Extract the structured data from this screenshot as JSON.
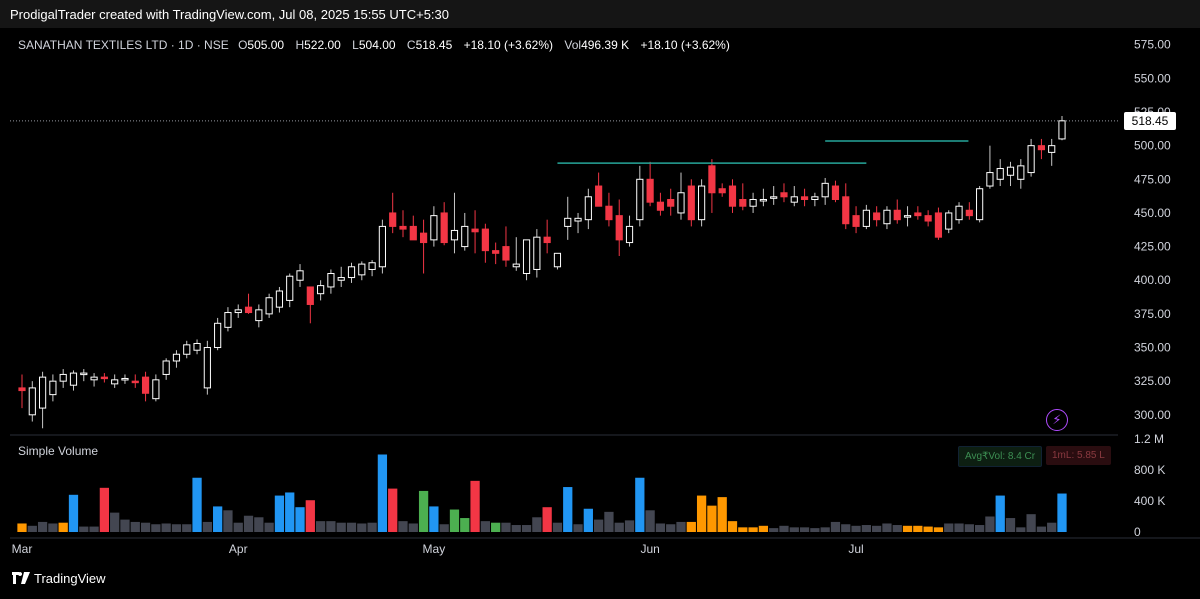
{
  "header": {
    "attribution": "ProdigalTrader created with TradingView.com, Jul 08, 2025 15:55 UTC+5:30"
  },
  "legend": {
    "symbol": "SANATHAN TEXTILES LTD · 1D · NSE",
    "open_label": "O",
    "open": "505.00",
    "high_label": "H",
    "high": "522.00",
    "low_label": "L",
    "low": "504.00",
    "close_label": "C",
    "close": "518.45",
    "change": "+18.10 (+3.62%)",
    "vol_label": "Vol",
    "vol": "496.39 K",
    "vol_change": "+18.10 (+3.62%)"
  },
  "volume_pane": {
    "title": "Simple Volume",
    "avg_vol": "Avg₹Vol: 8.4 Cr",
    "one_m": "1mL: 5.85 L"
  },
  "last_price_tag": "518.45",
  "footer": {
    "brand": "TradingView"
  },
  "colors": {
    "up": "#ffffff",
    "down": "#f23645",
    "green_vol": "#4caf50",
    "blue_vol": "#2196f3",
    "red_vol": "#f23645",
    "gray_vol": "#434651",
    "orange_vol": "#ff9800",
    "line": "#26a69a"
  },
  "chart_data": {
    "type": "candlestick",
    "title": "SANATHAN TEXTILES LTD · 1D · NSE",
    "y_ticks": [
      "575.00",
      "550.00",
      "525.00",
      "500.00",
      "475.00",
      "450.00",
      "425.00",
      "400.00",
      "375.00",
      "350.00",
      "325.00",
      "300.00"
    ],
    "ylim": [
      285,
      580
    ],
    "x_ticks": [
      {
        "label": "Mar",
        "index": 0
      },
      {
        "label": "Apr",
        "index": 21
      },
      {
        "label": "May",
        "index": 40
      },
      {
        "label": "Jun",
        "index": 61
      },
      {
        "label": "Jul",
        "index": 81
      }
    ],
    "volume_ticks": [
      "1.2 M",
      "800 K",
      "400 K",
      "0"
    ],
    "volume_lim": [
      0,
      1200000
    ],
    "resistance_lines": [
      {
        "price": 487,
        "from_index": 52,
        "to_index": 82
      },
      {
        "price": 503.5,
        "from_index": 78,
        "to_index": 89
      }
    ],
    "candles": [
      {
        "o": 320,
        "h": 330,
        "l": 305,
        "c": 318,
        "v": 110000
      },
      {
        "o": 300,
        "h": 325,
        "l": 295,
        "c": 320,
        "v": 80000
      },
      {
        "o": 305,
        "h": 332,
        "l": 290,
        "c": 328,
        "v": 130000
      },
      {
        "o": 315,
        "h": 330,
        "l": 310,
        "c": 325,
        "v": 110000
      },
      {
        "o": 325,
        "h": 334,
        "l": 320,
        "c": 330,
        "v": 120000
      },
      {
        "o": 322,
        "h": 333,
        "l": 318,
        "c": 331,
        "v": 480000
      },
      {
        "o": 330,
        "h": 334,
        "l": 325,
        "c": 331,
        "v": 70000
      },
      {
        "o": 326,
        "h": 331,
        "l": 321,
        "c": 328,
        "v": 70000
      },
      {
        "o": 328,
        "h": 331,
        "l": 324,
        "c": 327,
        "v": 570000
      },
      {
        "o": 323,
        "h": 330,
        "l": 320,
        "c": 326,
        "v": 250000
      },
      {
        "o": 327,
        "h": 330,
        "l": 323,
        "c": 327,
        "v": 160000
      },
      {
        "o": 325,
        "h": 330,
        "l": 320,
        "c": 324,
        "v": 130000
      },
      {
        "o": 328,
        "h": 332,
        "l": 310,
        "c": 316,
        "v": 120000
      },
      {
        "o": 312,
        "h": 330,
        "l": 310,
        "c": 326,
        "v": 100000
      },
      {
        "o": 330,
        "h": 342,
        "l": 326,
        "c": 340,
        "v": 110000
      },
      {
        "o": 340,
        "h": 348,
        "l": 335,
        "c": 345,
        "v": 100000
      },
      {
        "o": 345,
        "h": 355,
        "l": 342,
        "c": 352,
        "v": 100000
      },
      {
        "o": 348,
        "h": 356,
        "l": 345,
        "c": 353,
        "v": 700000
      },
      {
        "o": 320,
        "h": 355,
        "l": 315,
        "c": 350,
        "v": 130000
      },
      {
        "o": 350,
        "h": 372,
        "l": 348,
        "c": 368,
        "v": 330000
      },
      {
        "o": 365,
        "h": 380,
        "l": 362,
        "c": 376,
        "v": 280000
      },
      {
        "o": 376,
        "h": 382,
        "l": 372,
        "c": 378,
        "v": 120000
      },
      {
        "o": 380,
        "h": 390,
        "l": 375,
        "c": 376,
        "v": 210000
      },
      {
        "o": 370,
        "h": 382,
        "l": 365,
        "c": 378,
        "v": 190000
      },
      {
        "o": 375,
        "h": 390,
        "l": 372,
        "c": 387,
        "v": 120000
      },
      {
        "o": 380,
        "h": 395,
        "l": 376,
        "c": 392,
        "v": 470000
      },
      {
        "o": 385,
        "h": 405,
        "l": 380,
        "c": 403,
        "v": 510000
      },
      {
        "o": 400,
        "h": 412,
        "l": 395,
        "c": 407,
        "v": 320000
      },
      {
        "o": 395,
        "h": 395,
        "l": 368,
        "c": 382,
        "v": 410000
      },
      {
        "o": 390,
        "h": 400,
        "l": 385,
        "c": 396,
        "v": 140000
      },
      {
        "o": 395,
        "h": 408,
        "l": 390,
        "c": 405,
        "v": 140000
      },
      {
        "o": 400,
        "h": 410,
        "l": 395,
        "c": 402,
        "v": 120000
      },
      {
        "o": 402,
        "h": 413,
        "l": 398,
        "c": 410,
        "v": 120000
      },
      {
        "o": 404,
        "h": 414,
        "l": 400,
        "c": 412,
        "v": 110000
      },
      {
        "o": 408,
        "h": 415,
        "l": 403,
        "c": 413,
        "v": 120000
      },
      {
        "o": 410,
        "h": 445,
        "l": 405,
        "c": 440,
        "v": 1000000
      },
      {
        "o": 450,
        "h": 465,
        "l": 435,
        "c": 440,
        "v": 560000
      },
      {
        "o": 440,
        "h": 452,
        "l": 432,
        "c": 438,
        "v": 140000
      },
      {
        "o": 440,
        "h": 448,
        "l": 430,
        "c": 430,
        "v": 110000
      },
      {
        "o": 435,
        "h": 445,
        "l": 405,
        "c": 428,
        "v": 530000
      },
      {
        "o": 430,
        "h": 455,
        "l": 425,
        "c": 448,
        "v": 330000
      },
      {
        "o": 450,
        "h": 458,
        "l": 426,
        "c": 428,
        "v": 100000
      },
      {
        "o": 430,
        "h": 465,
        "l": 420,
        "c": 437,
        "v": 290000
      },
      {
        "o": 425,
        "h": 450,
        "l": 422,
        "c": 440,
        "v": 180000
      },
      {
        "o": 438,
        "h": 452,
        "l": 420,
        "c": 436,
        "v": 660000
      },
      {
        "o": 438,
        "h": 442,
        "l": 413,
        "c": 422,
        "v": 140000
      },
      {
        "o": 422,
        "h": 428,
        "l": 412,
        "c": 420,
        "v": 120000
      },
      {
        "o": 425,
        "h": 440,
        "l": 410,
        "c": 415,
        "v": 120000
      },
      {
        "o": 410,
        "h": 432,
        "l": 407,
        "c": 412,
        "v": 90000
      },
      {
        "o": 405,
        "h": 430,
        "l": 400,
        "c": 430,
        "v": 90000
      },
      {
        "o": 408,
        "h": 438,
        "l": 402,
        "c": 432,
        "v": 190000
      },
      {
        "o": 432,
        "h": 445,
        "l": 420,
        "c": 428,
        "v": 320000
      },
      {
        "o": 410,
        "h": 420,
        "l": 408,
        "c": 420,
        "v": 120000
      },
      {
        "o": 440,
        "h": 462,
        "l": 430,
        "c": 446,
        "v": 580000
      },
      {
        "o": 444,
        "h": 450,
        "l": 435,
        "c": 446,
        "v": 100000
      },
      {
        "o": 445,
        "h": 468,
        "l": 438,
        "c": 462,
        "v": 300000
      },
      {
        "o": 470,
        "h": 480,
        "l": 455,
        "c": 455,
        "v": 160000
      },
      {
        "o": 455,
        "h": 465,
        "l": 440,
        "c": 445,
        "v": 260000
      },
      {
        "o": 448,
        "h": 460,
        "l": 418,
        "c": 430,
        "v": 120000
      },
      {
        "o": 428,
        "h": 448,
        "l": 425,
        "c": 440,
        "v": 150000
      },
      {
        "o": 445,
        "h": 485,
        "l": 440,
        "c": 475,
        "v": 700000
      },
      {
        "o": 475,
        "h": 488,
        "l": 455,
        "c": 458,
        "v": 280000
      },
      {
        "o": 458,
        "h": 465,
        "l": 448,
        "c": 452,
        "v": 110000
      },
      {
        "o": 460,
        "h": 468,
        "l": 448,
        "c": 455,
        "v": 100000
      },
      {
        "o": 450,
        "h": 480,
        "l": 445,
        "c": 465,
        "v": 130000
      },
      {
        "o": 470,
        "h": 475,
        "l": 440,
        "c": 445,
        "v": 130000
      },
      {
        "o": 445,
        "h": 475,
        "l": 440,
        "c": 470,
        "v": 470000
      },
      {
        "o": 485,
        "h": 490,
        "l": 450,
        "c": 465,
        "v": 340000
      },
      {
        "o": 468,
        "h": 472,
        "l": 462,
        "c": 465,
        "v": 450000
      },
      {
        "o": 470,
        "h": 475,
        "l": 450,
        "c": 455,
        "v": 140000
      },
      {
        "o": 460,
        "h": 472,
        "l": 452,
        "c": 455,
        "v": 60000
      },
      {
        "o": 455,
        "h": 465,
        "l": 450,
        "c": 460,
        "v": 60000
      },
      {
        "o": 460,
        "h": 468,
        "l": 455,
        "c": 460,
        "v": 80000
      },
      {
        "o": 462,
        "h": 470,
        "l": 456,
        "c": 462,
        "v": 50000
      },
      {
        "o": 465,
        "h": 472,
        "l": 458,
        "c": 462,
        "v": 80000
      },
      {
        "o": 458,
        "h": 470,
        "l": 455,
        "c": 462,
        "v": 60000
      },
      {
        "o": 462,
        "h": 468,
        "l": 455,
        "c": 460,
        "v": 60000
      },
      {
        "o": 460,
        "h": 465,
        "l": 455,
        "c": 462,
        "v": 50000
      },
      {
        "o": 462,
        "h": 476,
        "l": 456,
        "c": 472,
        "v": 60000
      },
      {
        "o": 470,
        "h": 474,
        "l": 458,
        "c": 460,
        "v": 130000
      },
      {
        "o": 462,
        "h": 472,
        "l": 438,
        "c": 442,
        "v": 100000
      },
      {
        "o": 448,
        "h": 455,
        "l": 435,
        "c": 440,
        "v": 80000
      },
      {
        "o": 440,
        "h": 456,
        "l": 438,
        "c": 452,
        "v": 90000
      },
      {
        "o": 450,
        "h": 455,
        "l": 440,
        "c": 445,
        "v": 80000
      },
      {
        "o": 442,
        "h": 455,
        "l": 438,
        "c": 452,
        "v": 110000
      },
      {
        "o": 452,
        "h": 460,
        "l": 442,
        "c": 445,
        "v": 90000
      },
      {
        "o": 448,
        "h": 455,
        "l": 440,
        "c": 448,
        "v": 80000
      },
      {
        "o": 450,
        "h": 455,
        "l": 445,
        "c": 448,
        "v": 80000
      },
      {
        "o": 448,
        "h": 452,
        "l": 440,
        "c": 444,
        "v": 70000
      },
      {
        "o": 450,
        "h": 454,
        "l": 430,
        "c": 432,
        "v": 60000
      },
      {
        "o": 438,
        "h": 452,
        "l": 435,
        "c": 450,
        "v": 110000
      },
      {
        "o": 445,
        "h": 458,
        "l": 442,
        "c": 455,
        "v": 110000
      },
      {
        "o": 452,
        "h": 458,
        "l": 445,
        "c": 448,
        "v": 100000
      },
      {
        "o": 445,
        "h": 470,
        "l": 443,
        "c": 468,
        "v": 90000
      },
      {
        "o": 470,
        "h": 500,
        "l": 468,
        "c": 480,
        "v": 200000
      },
      {
        "o": 475,
        "h": 490,
        "l": 470,
        "c": 483,
        "v": 470000
      },
      {
        "o": 478,
        "h": 488,
        "l": 470,
        "c": 484,
        "v": 180000
      },
      {
        "o": 475,
        "h": 490,
        "l": 468,
        "c": 485,
        "v": 60000
      },
      {
        "o": 480,
        "h": 505,
        "l": 477,
        "c": 500,
        "v": 230000
      },
      {
        "o": 500,
        "h": 505,
        "l": 490,
        "c": 497,
        "v": 70000
      },
      {
        "o": 495,
        "h": 505,
        "l": 485,
        "c": 500,
        "v": 120000
      },
      {
        "o": 505,
        "h": 522,
        "l": 504,
        "c": 518.45,
        "v": 496390
      }
    ]
  }
}
